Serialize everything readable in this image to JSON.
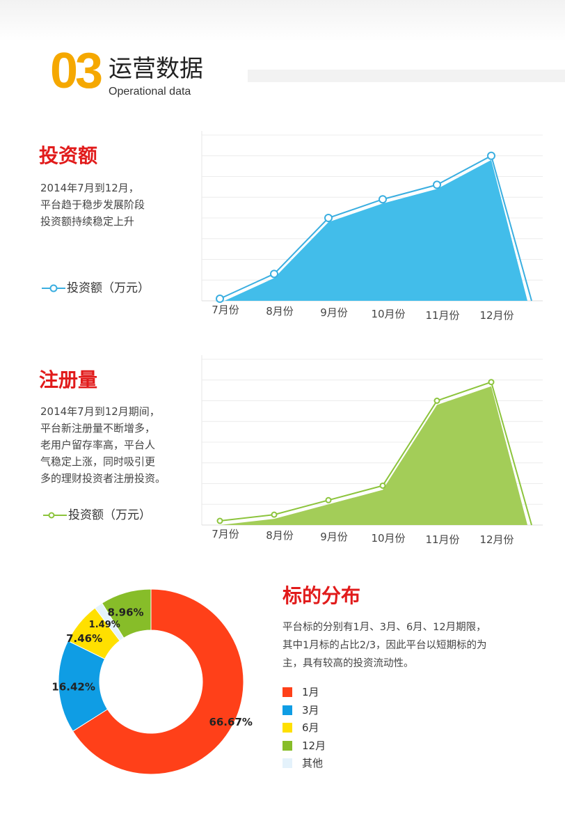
{
  "header": {
    "number": "03",
    "title_zh": "运营数据",
    "title_en": "Operational data"
  },
  "investment": {
    "title": "投资额",
    "description": [
      "2014年7月到12月，",
      "平台趋于稳步发展阶段",
      "投资额持续稳定上升"
    ],
    "legend": "投资额（万元）",
    "color": "#3aaee0",
    "fill": "#42bdea"
  },
  "registration": {
    "title": "注册量",
    "description": [
      "2014年7月到12月期间，",
      "平台新注册量不断增多，",
      "老用户留存率高，平台人",
      "气稳定上涨，同时吸引更",
      "多的理财投资者注册投资。"
    ],
    "legend": "投资额（万元）",
    "color": "#8cc43c",
    "fill": "#a3cd58"
  },
  "distribution": {
    "title": "标的分布",
    "description": [
      "平台标的分别有1月、3月、6月、12月期限，",
      "其中1月标的占比2/3，因此平台以短期标的为",
      "主，具有较高的投资流动性。"
    ],
    "legend": [
      {
        "label": "1月",
        "color": "#ff4019"
      },
      {
        "label": "3月",
        "color": "#0f9de4"
      },
      {
        "label": "6月",
        "color": "#ffe000"
      },
      {
        "label": "12月",
        "color": "#87bd29"
      },
      {
        "label": "其他",
        "color": "#e4f2fb"
      }
    ]
  },
  "chart_data": [
    {
      "type": "area",
      "categories": [
        "7月份",
        "8月份",
        "9月份",
        "10月份",
        "11月份",
        "12月份"
      ],
      "series": [
        {
          "name": "投资额（万元）",
          "values": [
            1,
            13,
            40,
            49,
            56,
            70
          ]
        }
      ],
      "ylim": [
        0,
        80
      ],
      "grid": true,
      "legend": "left"
    },
    {
      "type": "area",
      "categories": [
        "7月份",
        "8月份",
        "9月份",
        "10月份",
        "11月份",
        "12月份"
      ],
      "series": [
        {
          "name": "投资额（万元）",
          "values": [
            2,
            5,
            12,
            19,
            60,
            69
          ]
        }
      ],
      "ylim": [
        0,
        80
      ],
      "grid": true,
      "legend": "left"
    },
    {
      "type": "pie",
      "categories": [
        "1月",
        "3月",
        "6月",
        "其他",
        "12月"
      ],
      "values": [
        66.67,
        16.42,
        7.46,
        1.49,
        8.96
      ],
      "labels": [
        "66.67%",
        "16.42%",
        "7.46%",
        "1.49%",
        "8.96%"
      ],
      "colors": [
        "#ff4019",
        "#0f9de4",
        "#ffe000",
        "#e4f2fb",
        "#87bd29"
      ],
      "donut": true
    }
  ]
}
